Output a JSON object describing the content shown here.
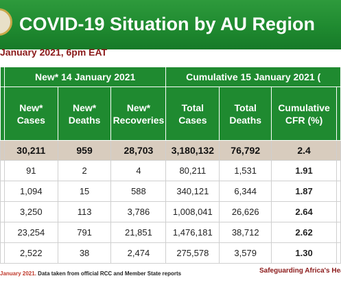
{
  "banner": {
    "title": "COVID-19 Situation by AU Region"
  },
  "subtitle": "January 2021, 6pm EAT",
  "table": {
    "group_headers": [
      "New* 14 January 2021",
      "Cumulative 15 January 2021 ("
    ],
    "columns": [
      "New* Cases",
      "New* Deaths",
      "New* Recoveries",
      "Total Cases",
      "Total Deaths",
      "Cumulative CFR (%)"
    ],
    "total": [
      "30,211",
      "959",
      "28,703",
      "3,180,132",
      "76,792",
      "2.4"
    ],
    "rows": [
      [
        "91",
        "2",
        "4",
        "80,211",
        "1,531",
        "1.91"
      ],
      [
        "1,094",
        "15",
        "588",
        "340,121",
        "6,344",
        "1.87"
      ],
      [
        "3,250",
        "113",
        "3,786",
        "1,008,041",
        "26,626",
        "2.64"
      ],
      [
        "23,254",
        "791",
        "21,851",
        "1,476,181",
        "38,712",
        "2.62"
      ],
      [
        "2,522",
        "38",
        "2,474",
        "275,578",
        "3,579",
        "1.30"
      ]
    ]
  },
  "footer": {
    "date_part": "January 2021.",
    "source_part": "Data taken from official RCC and Member State reports",
    "tagline": "Safeguarding Africa's Heal"
  },
  "colors": {
    "banner": "#1f8a30",
    "header": "#1f8a30",
    "total_row": "#d8ccbe",
    "accent": "#8b1a1a"
  }
}
